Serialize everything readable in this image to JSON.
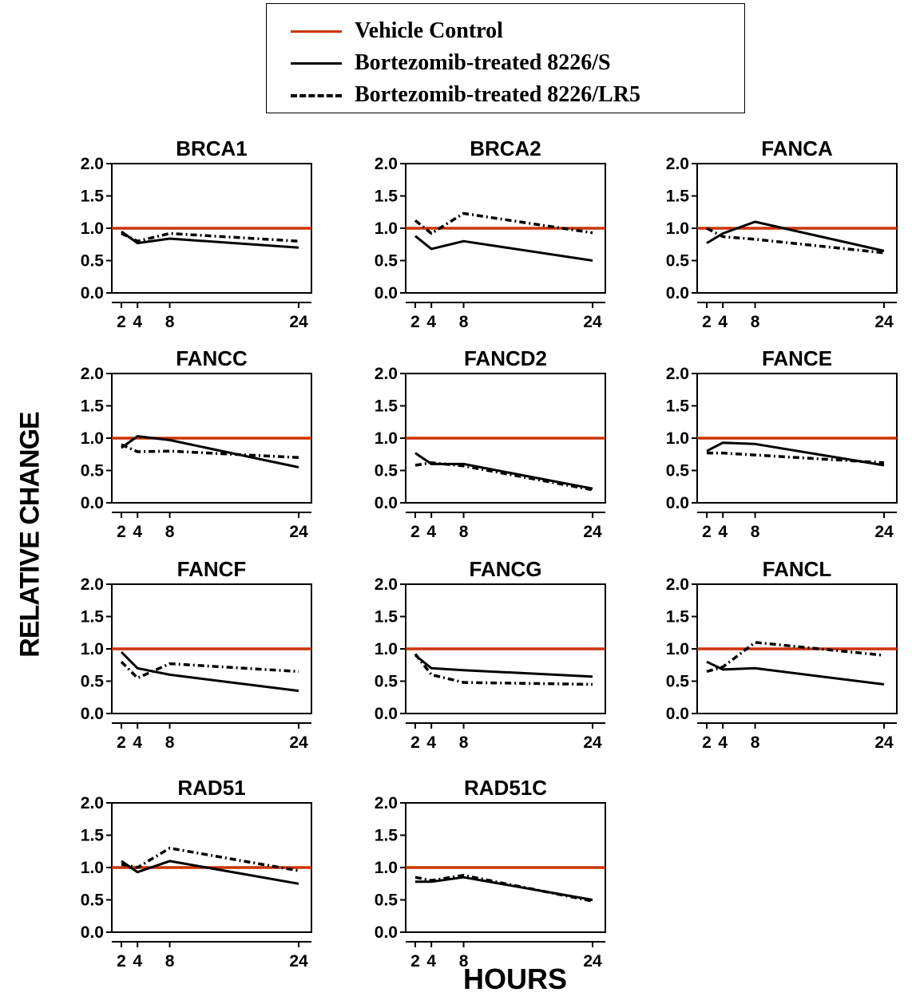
{
  "legend": {
    "items": [
      {
        "label": "Vehicle Control",
        "color": "#cc3300",
        "style": "solid"
      },
      {
        "label": "Bortezomib-treated 8226/S",
        "color": "#000000",
        "style": "solid"
      },
      {
        "label": "Bortezomib-treated 8226/LR5",
        "color": "#000000",
        "style": "dashed"
      }
    ]
  },
  "axes": {
    "ylabel": "RELATIVE CHANGE",
    "xlabel": "HOURS"
  },
  "chart_data": [
    {
      "type": "line",
      "title": "BRCA1",
      "x": [
        2,
        4,
        8,
        24
      ],
      "xticks": [
        "2",
        "4",
        "8",
        "24"
      ],
      "yticks": [
        "2.0",
        "1.5",
        "1.0",
        "0.5",
        "0.0"
      ],
      "ylim": [
        0,
        2.0
      ],
      "series": [
        {
          "name": "Vehicle Control",
          "values": [
            1.0,
            1.0,
            1.0,
            1.0
          ]
        },
        {
          "name": "Bortezomib-treated 8226/S",
          "values": [
            0.95,
            0.77,
            0.84,
            0.7
          ]
        },
        {
          "name": "Bortezomib-treated 8226/LR5",
          "values": [
            0.92,
            0.8,
            0.92,
            0.8
          ]
        }
      ]
    },
    {
      "type": "line",
      "title": "BRCA2",
      "x": [
        2,
        4,
        8,
        24
      ],
      "xticks": [
        "2",
        "4",
        "8",
        "24"
      ],
      "yticks": [
        "2.0",
        "1.5",
        "1.0",
        "0.5",
        "0.0"
      ],
      "ylim": [
        0,
        2.0
      ],
      "series": [
        {
          "name": "Vehicle Control",
          "values": [
            1.0,
            1.0,
            1.0,
            1.0
          ]
        },
        {
          "name": "Bortezomib-treated 8226/S",
          "values": [
            0.88,
            0.68,
            0.8,
            0.5
          ]
        },
        {
          "name": "Bortezomib-treated 8226/LR5",
          "values": [
            1.12,
            0.92,
            1.23,
            0.93
          ]
        }
      ]
    },
    {
      "type": "line",
      "title": "FANCA",
      "x": [
        2,
        4,
        8,
        24
      ],
      "xticks": [
        "2",
        "4",
        "8",
        "24"
      ],
      "yticks": [
        "2.0",
        "1.5",
        "1.0",
        "0.5",
        "0.0"
      ],
      "ylim": [
        0,
        2.0
      ],
      "series": [
        {
          "name": "Vehicle Control",
          "values": [
            1.0,
            1.0,
            1.0,
            1.0
          ]
        },
        {
          "name": "Bortezomib-treated 8226/S",
          "values": [
            0.77,
            0.92,
            1.1,
            0.65
          ]
        },
        {
          "name": "Bortezomib-treated 8226/LR5",
          "values": [
            1.0,
            0.87,
            0.83,
            0.62
          ]
        }
      ]
    },
    {
      "type": "line",
      "title": "FANCC",
      "x": [
        2,
        4,
        8,
        24
      ],
      "xticks": [
        "2",
        "4",
        "8",
        "24"
      ],
      "yticks": [
        "2.0",
        "1.5",
        "1.0",
        "0.5",
        "0.0"
      ],
      "ylim": [
        0,
        2.0
      ],
      "series": [
        {
          "name": "Vehicle Control",
          "values": [
            1.0,
            1.0,
            1.0,
            1.0
          ]
        },
        {
          "name": "Bortezomib-treated 8226/S",
          "values": [
            0.85,
            1.03,
            0.97,
            0.55
          ]
        },
        {
          "name": "Bortezomib-treated 8226/LR5",
          "values": [
            0.9,
            0.79,
            0.8,
            0.7
          ]
        }
      ]
    },
    {
      "type": "line",
      "title": "FANCD2",
      "x": [
        2,
        4,
        8,
        24
      ],
      "xticks": [
        "2",
        "4",
        "8",
        "24"
      ],
      "yticks": [
        "2.0",
        "1.5",
        "1.0",
        "0.5",
        "0.0"
      ],
      "ylim": [
        0,
        2.0
      ],
      "series": [
        {
          "name": "Vehicle Control",
          "values": [
            1.0,
            1.0,
            1.0,
            1.0
          ]
        },
        {
          "name": "Bortezomib-treated 8226/S",
          "values": [
            0.77,
            0.6,
            0.6,
            0.22
          ]
        },
        {
          "name": "Bortezomib-treated 8226/LR5",
          "values": [
            0.58,
            0.62,
            0.57,
            0.2
          ]
        }
      ]
    },
    {
      "type": "line",
      "title": "FANCE",
      "x": [
        2,
        4,
        8,
        24
      ],
      "xticks": [
        "2",
        "4",
        "8",
        "24"
      ],
      "yticks": [
        "2.0",
        "1.5",
        "1.0",
        "0.5",
        "0.0"
      ],
      "ylim": [
        0,
        2.0
      ],
      "series": [
        {
          "name": "Vehicle Control",
          "values": [
            1.0,
            1.0,
            1.0,
            1.0
          ]
        },
        {
          "name": "Bortezomib-treated 8226/S",
          "values": [
            0.8,
            0.93,
            0.91,
            0.58
          ]
        },
        {
          "name": "Bortezomib-treated 8226/LR5",
          "values": [
            0.77,
            0.77,
            0.74,
            0.62
          ]
        }
      ]
    },
    {
      "type": "line",
      "title": "FANCF",
      "x": [
        2,
        4,
        8,
        24
      ],
      "xticks": [
        "2",
        "4",
        "8",
        "24"
      ],
      "yticks": [
        "2.0",
        "1.5",
        "1.0",
        "0.5",
        "0.0"
      ],
      "ylim": [
        0,
        2.0
      ],
      "series": [
        {
          "name": "Vehicle Control",
          "values": [
            1.0,
            1.0,
            1.0,
            1.0
          ]
        },
        {
          "name": "Bortezomib-treated 8226/S",
          "values": [
            0.95,
            0.7,
            0.6,
            0.35
          ]
        },
        {
          "name": "Bortezomib-treated 8226/LR5",
          "values": [
            0.8,
            0.55,
            0.77,
            0.65
          ]
        }
      ]
    },
    {
      "type": "line",
      "title": "FANCG",
      "x": [
        2,
        4,
        8,
        24
      ],
      "xticks": [
        "2",
        "4",
        "8",
        "24"
      ],
      "yticks": [
        "2.0",
        "1.5",
        "1.0",
        "0.5",
        "0.0"
      ],
      "ylim": [
        0,
        2.0
      ],
      "series": [
        {
          "name": "Vehicle Control",
          "values": [
            1.0,
            1.0,
            1.0,
            1.0
          ]
        },
        {
          "name": "Bortezomib-treated 8226/S",
          "values": [
            0.9,
            0.7,
            0.67,
            0.57
          ]
        },
        {
          "name": "Bortezomib-treated 8226/LR5",
          "values": [
            0.92,
            0.6,
            0.48,
            0.45
          ]
        }
      ]
    },
    {
      "type": "line",
      "title": "FANCL",
      "x": [
        2,
        4,
        8,
        24
      ],
      "xticks": [
        "2",
        "4",
        "8",
        "24"
      ],
      "yticks": [
        "2.0",
        "1.5",
        "1.0",
        "0.5",
        "0.0"
      ],
      "ylim": [
        0,
        2.0
      ],
      "series": [
        {
          "name": "Vehicle Control",
          "values": [
            1.0,
            1.0,
            1.0,
            1.0
          ]
        },
        {
          "name": "Bortezomib-treated 8226/S",
          "values": [
            0.8,
            0.68,
            0.7,
            0.45
          ]
        },
        {
          "name": "Bortezomib-treated 8226/LR5",
          "values": [
            0.65,
            0.72,
            1.1,
            0.9
          ]
        }
      ]
    },
    {
      "type": "line",
      "title": "RAD51",
      "x": [
        2,
        4,
        8,
        24
      ],
      "xticks": [
        "2",
        "4",
        "8",
        "24"
      ],
      "yticks": [
        "2.0",
        "1.5",
        "1.0",
        "0.5",
        "0.0"
      ],
      "ylim": [
        0,
        2.0
      ],
      "series": [
        {
          "name": "Vehicle Control",
          "values": [
            1.0,
            1.0,
            1.0,
            1.0
          ]
        },
        {
          "name": "Bortezomib-treated 8226/S",
          "values": [
            1.1,
            0.93,
            1.1,
            0.75
          ]
        },
        {
          "name": "Bortezomib-treated 8226/LR5",
          "values": [
            1.05,
            1.0,
            1.3,
            0.95
          ]
        }
      ]
    },
    {
      "type": "line",
      "title": "RAD51C",
      "x": [
        2,
        4,
        8,
        24
      ],
      "xticks": [
        "2",
        "4",
        "8",
        "24"
      ],
      "yticks": [
        "2.0",
        "1.5",
        "1.0",
        "0.5",
        "0.0"
      ],
      "ylim": [
        0,
        2.0
      ],
      "series": [
        {
          "name": "Vehicle Control",
          "values": [
            1.0,
            1.0,
            1.0,
            1.0
          ]
        },
        {
          "name": "Bortezomib-treated 8226/S",
          "values": [
            0.78,
            0.78,
            0.85,
            0.5
          ]
        },
        {
          "name": "Bortezomib-treated 8226/LR5",
          "values": [
            0.85,
            0.8,
            0.88,
            0.48
          ]
        }
      ]
    }
  ]
}
